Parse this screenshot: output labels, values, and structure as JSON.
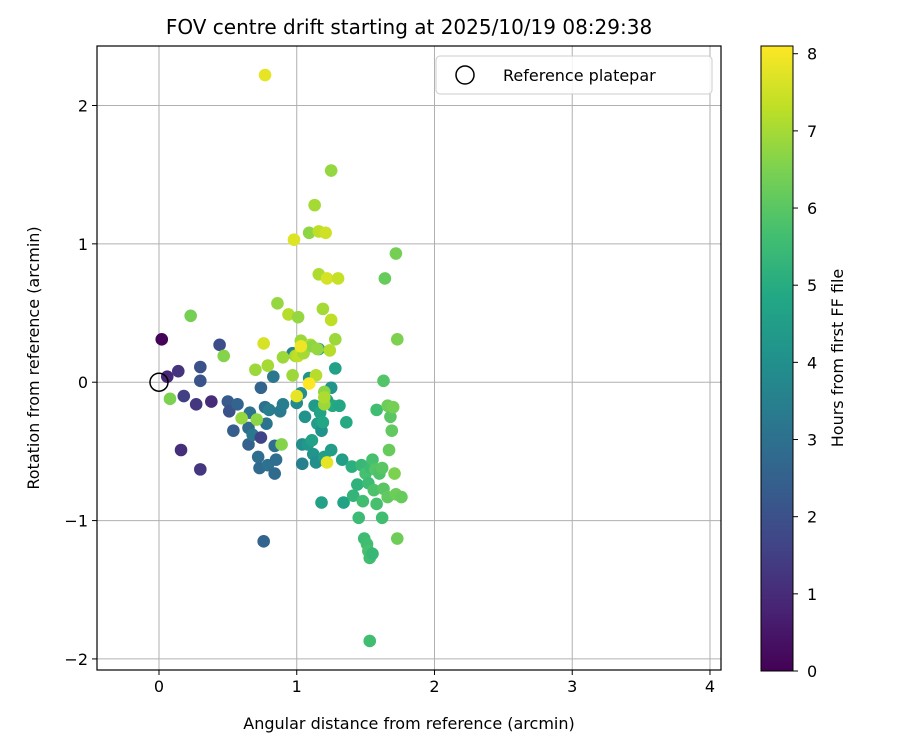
{
  "chart_data": {
    "type": "scatter",
    "title": "FOV centre drift starting at 2025/10/19 08:29:38",
    "xlabel": "Angular distance from reference (arcmin)",
    "ylabel": "Rotation from reference (arcmin)",
    "xlim": [
      -0.45,
      4.08
    ],
    "ylim": [
      -2.08,
      2.43
    ],
    "xticks": [
      0,
      1,
      2,
      3,
      4
    ],
    "yticks": [
      -2,
      -1,
      0,
      1,
      2
    ],
    "xtick_labels": [
      "0",
      "1",
      "2",
      "3",
      "4"
    ],
    "ytick_labels": [
      "−2",
      "−1",
      "0",
      "1",
      "2"
    ],
    "grid": true,
    "legend": {
      "label": "Reference platepar",
      "position": "top-right"
    },
    "reference": {
      "x": 0.0,
      "y": 0.0
    },
    "colorbar": {
      "label": "Hours from first FF file",
      "range": [
        0,
        8.1
      ],
      "ticks": [
        0,
        1,
        2,
        3,
        4,
        5,
        6,
        7,
        8
      ],
      "tick_labels": [
        "0",
        "1",
        "2",
        "3",
        "4",
        "5",
        "6",
        "7",
        "8"
      ],
      "colormap": "viridis"
    },
    "points": [
      {
        "x": 0.02,
        "y": 0.31,
        "h": 0.1
      },
      {
        "x": 0.06,
        "y": 0.04,
        "h": 0.9
      },
      {
        "x": 0.14,
        "y": 0.08,
        "h": 1.2
      },
      {
        "x": 0.16,
        "y": -0.49,
        "h": 1.1
      },
      {
        "x": 0.18,
        "y": -0.1,
        "h": 1.5
      },
      {
        "x": 0.27,
        "y": -0.16,
        "h": 1.3
      },
      {
        "x": 0.3,
        "y": -0.63,
        "h": 1.3
      },
      {
        "x": 0.38,
        "y": -0.14,
        "h": 1.0
      },
      {
        "x": 0.3,
        "y": 0.11,
        "h": 2.0
      },
      {
        "x": 0.3,
        "y": 0.01,
        "h": 2.1
      },
      {
        "x": 0.44,
        "y": 0.27,
        "h": 1.9
      },
      {
        "x": 0.5,
        "y": -0.14,
        "h": 2.3
      },
      {
        "x": 0.51,
        "y": -0.21,
        "h": 2.0
      },
      {
        "x": 0.54,
        "y": -0.35,
        "h": 2.4
      },
      {
        "x": 0.57,
        "y": -0.16,
        "h": 2.6
      },
      {
        "x": 0.65,
        "y": -0.33,
        "h": 2.8
      },
      {
        "x": 0.65,
        "y": -0.45,
        "h": 2.5
      },
      {
        "x": 0.66,
        "y": -0.22,
        "h": 3.0
      },
      {
        "x": 0.68,
        "y": -0.38,
        "h": 3.2
      },
      {
        "x": 0.72,
        "y": -0.54,
        "h": 2.9
      },
      {
        "x": 0.73,
        "y": -0.62,
        "h": 2.8
      },
      {
        "x": 0.74,
        "y": -0.4,
        "h": 1.6
      },
      {
        "x": 0.74,
        "y": -0.04,
        "h": 2.6
      },
      {
        "x": 0.76,
        "y": -1.15,
        "h": 2.6
      },
      {
        "x": 0.77,
        "y": -0.18,
        "h": 3.0
      },
      {
        "x": 0.78,
        "y": -0.3,
        "h": 3.1
      },
      {
        "x": 0.79,
        "y": -0.6,
        "h": 3.0
      },
      {
        "x": 0.8,
        "y": -0.2,
        "h": 3.4
      },
      {
        "x": 0.83,
        "y": 0.04,
        "h": 3.2
      },
      {
        "x": 0.84,
        "y": -0.46,
        "h": 2.9
      },
      {
        "x": 0.84,
        "y": -0.66,
        "h": 2.8
      },
      {
        "x": 0.85,
        "y": -0.56,
        "h": 2.9
      },
      {
        "x": 0.88,
        "y": -0.21,
        "h": 3.3
      },
      {
        "x": 0.9,
        "y": -0.16,
        "h": 3.4
      },
      {
        "x": 0.97,
        "y": 0.21,
        "h": 3.6
      },
      {
        "x": 1.0,
        "y": -0.15,
        "h": 3.8
      },
      {
        "x": 1.03,
        "y": -0.08,
        "h": 4.0
      },
      {
        "x": 1.04,
        "y": -0.59,
        "h": 3.5
      },
      {
        "x": 1.04,
        "y": -0.45,
        "h": 4.0
      },
      {
        "x": 1.06,
        "y": -0.25,
        "h": 4.1
      },
      {
        "x": 1.08,
        "y": -0.45,
        "h": 4.3
      },
      {
        "x": 1.09,
        "y": 0.03,
        "h": 4.2
      },
      {
        "x": 1.11,
        "y": -0.42,
        "h": 4.6
      },
      {
        "x": 1.12,
        "y": -0.52,
        "h": 4.2
      },
      {
        "x": 1.13,
        "y": -0.17,
        "h": 4.4
      },
      {
        "x": 1.14,
        "y": -0.58,
        "h": 4.0
      },
      {
        "x": 1.15,
        "y": -0.3,
        "h": 4.5
      },
      {
        "x": 1.16,
        "y": 0.24,
        "h": 4.3
      },
      {
        "x": 1.17,
        "y": -0.22,
        "h": 4.7
      },
      {
        "x": 1.18,
        "y": -0.35,
        "h": 4.1
      },
      {
        "x": 1.18,
        "y": -0.87,
        "h": 4.6
      },
      {
        "x": 1.19,
        "y": -0.29,
        "h": 4.8
      },
      {
        "x": 1.2,
        "y": -0.54,
        "h": 4.5
      },
      {
        "x": 1.22,
        "y": -0.13,
        "h": 4.6
      },
      {
        "x": 1.25,
        "y": -0.04,
        "h": 4.2
      },
      {
        "x": 1.25,
        "y": -0.49,
        "h": 4.5
      },
      {
        "x": 1.26,
        "y": -0.17,
        "h": 4.9
      },
      {
        "x": 1.28,
        "y": 0.1,
        "h": 4.6
      },
      {
        "x": 1.31,
        "y": -0.17,
        "h": 4.8
      },
      {
        "x": 1.33,
        "y": -0.56,
        "h": 4.5
      },
      {
        "x": 1.34,
        "y": -0.87,
        "h": 4.7
      },
      {
        "x": 1.36,
        "y": -0.29,
        "h": 4.9
      },
      {
        "x": 1.4,
        "y": -0.61,
        "h": 5.1
      },
      {
        "x": 1.41,
        "y": -0.82,
        "h": 5.3
      },
      {
        "x": 1.44,
        "y": -0.74,
        "h": 5.2
      },
      {
        "x": 1.45,
        "y": -0.98,
        "h": 5.5
      },
      {
        "x": 1.47,
        "y": -0.6,
        "h": 5.4
      },
      {
        "x": 1.48,
        "y": -0.86,
        "h": 5.6
      },
      {
        "x": 1.49,
        "y": -1.13,
        "h": 5.5
      },
      {
        "x": 1.5,
        "y": -0.66,
        "h": 5.7
      },
      {
        "x": 1.51,
        "y": -1.17,
        "h": 5.6
      },
      {
        "x": 1.52,
        "y": -0.73,
        "h": 5.5
      },
      {
        "x": 1.52,
        "y": -1.22,
        "h": 5.7
      },
      {
        "x": 1.53,
        "y": -1.27,
        "h": 5.6
      },
      {
        "x": 1.53,
        "y": -1.87,
        "h": 5.6
      },
      {
        "x": 1.54,
        "y": -0.62,
        "h": 5.5
      },
      {
        "x": 1.55,
        "y": -1.24,
        "h": 5.4
      },
      {
        "x": 1.55,
        "y": -0.56,
        "h": 5.7
      },
      {
        "x": 1.56,
        "y": -0.78,
        "h": 5.8
      },
      {
        "x": 1.57,
        "y": -0.63,
        "h": 5.9
      },
      {
        "x": 1.58,
        "y": -0.88,
        "h": 5.7
      },
      {
        "x": 1.58,
        "y": -0.2,
        "h": 5.6
      },
      {
        "x": 1.6,
        "y": -0.66,
        "h": 5.8
      },
      {
        "x": 1.62,
        "y": -0.62,
        "h": 6.0
      },
      {
        "x": 1.62,
        "y": -0.98,
        "h": 5.6
      },
      {
        "x": 1.63,
        "y": 0.01,
        "h": 5.9
      },
      {
        "x": 1.63,
        "y": -0.77,
        "h": 6.0
      },
      {
        "x": 1.64,
        "y": 0.75,
        "h": 6.2
      },
      {
        "x": 1.66,
        "y": -0.83,
        "h": 6.1
      },
      {
        "x": 1.66,
        "y": -0.17,
        "h": 6.3
      },
      {
        "x": 1.67,
        "y": -0.49,
        "h": 6.2
      },
      {
        "x": 1.68,
        "y": -0.25,
        "h": 6.0
      },
      {
        "x": 1.69,
        "y": -0.35,
        "h": 6.1
      },
      {
        "x": 1.7,
        "y": -0.18,
        "h": 6.4
      },
      {
        "x": 1.71,
        "y": -0.66,
        "h": 6.5
      },
      {
        "x": 1.72,
        "y": -0.81,
        "h": 6.3
      },
      {
        "x": 1.72,
        "y": 0.93,
        "h": 6.4
      },
      {
        "x": 1.73,
        "y": 0.31,
        "h": 6.5
      },
      {
        "x": 1.73,
        "y": -1.13,
        "h": 6.3
      },
      {
        "x": 1.76,
        "y": -0.83,
        "h": 6.2
      },
      {
        "x": 0.08,
        "y": -0.12,
        "h": 6.5
      },
      {
        "x": 0.23,
        "y": 0.48,
        "h": 6.4
      },
      {
        "x": 0.47,
        "y": 0.19,
        "h": 6.6
      },
      {
        "x": 0.6,
        "y": -0.26,
        "h": 6.8
      },
      {
        "x": 0.7,
        "y": 0.09,
        "h": 6.9
      },
      {
        "x": 0.71,
        "y": -0.27,
        "h": 6.7
      },
      {
        "x": 0.79,
        "y": 0.12,
        "h": 7.0
      },
      {
        "x": 0.86,
        "y": 0.57,
        "h": 6.8
      },
      {
        "x": 0.89,
        "y": -0.45,
        "h": 6.6
      },
      {
        "x": 0.9,
        "y": 0.18,
        "h": 6.9
      },
      {
        "x": 0.94,
        "y": 0.49,
        "h": 7.2
      },
      {
        "x": 0.97,
        "y": 0.05,
        "h": 6.9
      },
      {
        "x": 0.99,
        "y": 0.19,
        "h": 7.1
      },
      {
        "x": 1.01,
        "y": 0.47,
        "h": 6.8
      },
      {
        "x": 1.01,
        "y": 0.19,
        "h": 7.3
      },
      {
        "x": 1.03,
        "y": 0.3,
        "h": 6.9
      },
      {
        "x": 1.03,
        "y": 0.25,
        "h": 7.5
      },
      {
        "x": 1.05,
        "y": 0.21,
        "h": 7.0
      },
      {
        "x": 1.09,
        "y": 1.08,
        "h": 6.7
      },
      {
        "x": 1.1,
        "y": 0.27,
        "h": 7.2
      },
      {
        "x": 1.11,
        "y": 0.26,
        "h": 6.7
      },
      {
        "x": 1.13,
        "y": 1.28,
        "h": 7.0
      },
      {
        "x": 1.14,
        "y": 0.05,
        "h": 7.2
      },
      {
        "x": 1.15,
        "y": 0.24,
        "h": 6.8
      },
      {
        "x": 1.16,
        "y": 1.09,
        "h": 7.3
      },
      {
        "x": 1.16,
        "y": 0.78,
        "h": 7.1
      },
      {
        "x": 1.19,
        "y": 0.53,
        "h": 7.0
      },
      {
        "x": 1.2,
        "y": -0.07,
        "h": 6.7
      },
      {
        "x": 1.2,
        "y": -0.16,
        "h": 6.9
      },
      {
        "x": 1.2,
        "y": -0.11,
        "h": 7.1
      },
      {
        "x": 1.21,
        "y": 1.08,
        "h": 7.5
      },
      {
        "x": 1.22,
        "y": 0.75,
        "h": 7.6
      },
      {
        "x": 1.22,
        "y": -0.58,
        "h": 7.8
      },
      {
        "x": 1.24,
        "y": 0.23,
        "h": 7.2
      },
      {
        "x": 1.25,
        "y": 1.53,
        "h": 6.8
      },
      {
        "x": 1.25,
        "y": 0.45,
        "h": 7.3
      },
      {
        "x": 1.28,
        "y": 0.31,
        "h": 6.9
      },
      {
        "x": 1.3,
        "y": 0.75,
        "h": 7.4
      },
      {
        "x": 0.77,
        "y": 2.22,
        "h": 7.8
      },
      {
        "x": 0.76,
        "y": 0.28,
        "h": 7.6
      },
      {
        "x": 0.98,
        "y": 1.03,
        "h": 7.7
      },
      {
        "x": 1.0,
        "y": -0.1,
        "h": 7.8
      },
      {
        "x": 1.03,
        "y": 0.26,
        "h": 7.9
      },
      {
        "x": 1.09,
        "y": -0.01,
        "h": 8.1
      }
    ]
  }
}
